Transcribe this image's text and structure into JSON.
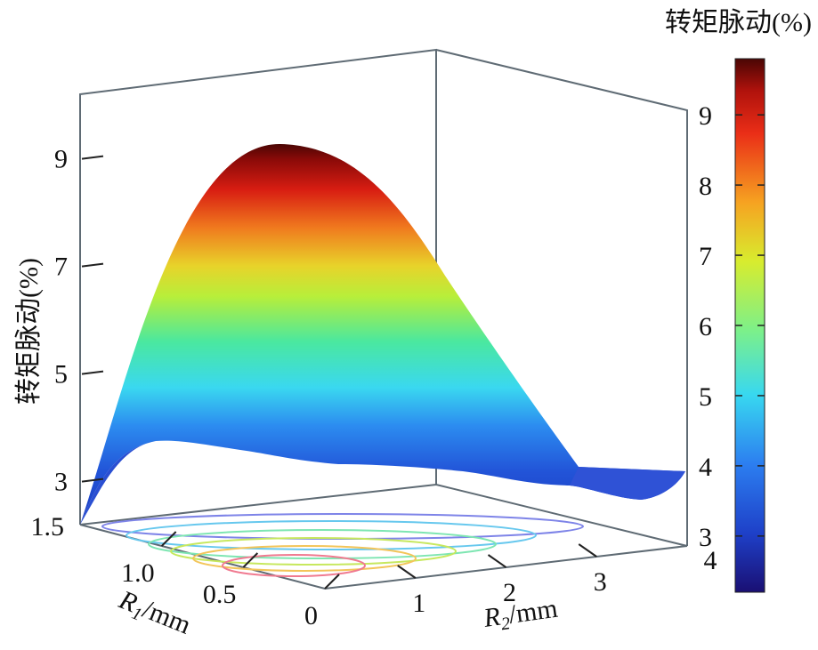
{
  "chart_data": {
    "type": "surface3d",
    "title": "",
    "zlabel": "转矩脉动(%)",
    "colorbar_title": "转矩脉动(%)",
    "x_axis": {
      "label_var": "R",
      "label_sub": "1",
      "label_unit": "/mm",
      "range": [
        0,
        1.5
      ],
      "ticks": [
        {
          "value": 0,
          "label": "0"
        },
        {
          "value": 0.5,
          "label": "0.5"
        },
        {
          "value": 1.0,
          "label": "1.0"
        },
        {
          "value": 1.5,
          "label": "1.5"
        }
      ]
    },
    "y_axis": {
      "label_var": "R",
      "label_sub": "2",
      "label_unit": "/mm",
      "range": [
        0,
        4
      ],
      "ticks": [
        {
          "value": 1,
          "label": "1"
        },
        {
          "value": 2,
          "label": "2"
        },
        {
          "value": 3,
          "label": "3"
        },
        {
          "value": 4,
          "label": "4"
        }
      ]
    },
    "z_axis": {
      "range": [
        2.2,
        10.2
      ],
      "ticks": [
        {
          "value": 3,
          "label": "3"
        },
        {
          "value": 5,
          "label": "5"
        },
        {
          "value": 7,
          "label": "7"
        },
        {
          "value": 9,
          "label": "9"
        }
      ]
    },
    "colorbar": {
      "range": [
        2.2,
        9.8
      ],
      "ticks": [
        {
          "value": 3,
          "label": "3"
        },
        {
          "value": 4,
          "label": "4"
        },
        {
          "value": 5,
          "label": "5"
        },
        {
          "value": 6,
          "label": "6"
        },
        {
          "value": 7,
          "label": "7"
        },
        {
          "value": 8,
          "label": "8"
        },
        {
          "value": 9,
          "label": "9"
        }
      ],
      "colormap": [
        "#1a0f73",
        "#1e40c8",
        "#2c7ef0",
        "#38d8f0",
        "#7cf08a",
        "#d8ec2e",
        "#f6a321",
        "#ea2e17",
        "#b0120c",
        "#4a0604"
      ]
    },
    "surface": {
      "approx_max": 9.7,
      "approx_max_at": {
        "R1": 1.1,
        "R2": 0.6
      },
      "approx_min": 2.6,
      "approx_min_at": {
        "R1": 1.2,
        "R2": 4.0
      },
      "front_edge_profile": [
        {
          "R2": 0,
          "value": 2.6
        },
        {
          "R2": 0.5,
          "value": 3.4
        },
        {
          "R2": 1,
          "value": 3.4
        },
        {
          "R2": 2,
          "value": 2.9
        },
        {
          "R2": 3,
          "value": 2.8
        },
        {
          "R2": 4,
          "value": 2.6
        }
      ]
    },
    "contour_levels": [
      3,
      4,
      5,
      6,
      7,
      8
    ]
  }
}
